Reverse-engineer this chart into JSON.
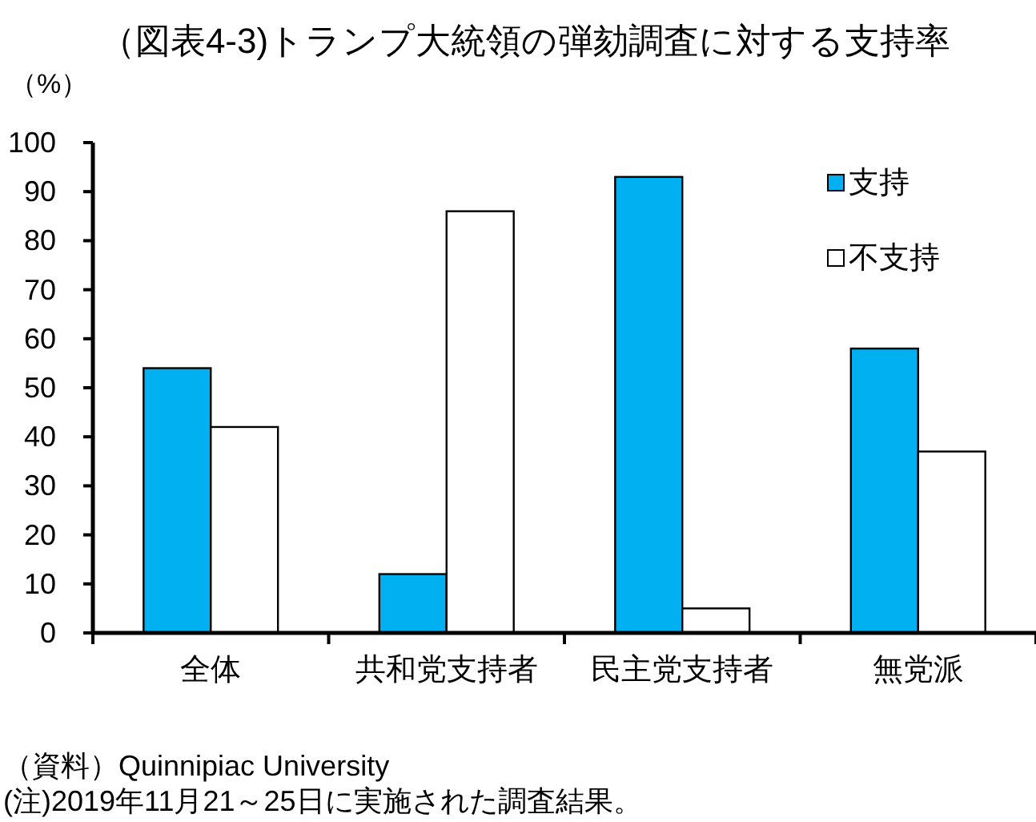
{
  "chart_data": {
    "type": "bar",
    "title": "（図表4-3)トランプ大統領の弾劾調査に対する支持率",
    "ylabel": "（%）",
    "categories": [
      "全体",
      "共和党支持者",
      "民主党支持者",
      "無党派"
    ],
    "series": [
      {
        "name": "支持",
        "color": "#00b0f0",
        "values": [
          54,
          12,
          93,
          58
        ]
      },
      {
        "name": "不支持",
        "color": "#ffffff",
        "values": [
          42,
          86,
          5,
          37
        ]
      }
    ],
    "ylim": [
      0,
      100
    ],
    "yticks": [
      0,
      10,
      20,
      30,
      40,
      50,
      60,
      70,
      80,
      90,
      100
    ],
    "legend": "top right",
    "annotations": [
      "（資料）Quinnipiac University",
      "(注)2019年11月21～25日に実施された調査結果。"
    ]
  }
}
